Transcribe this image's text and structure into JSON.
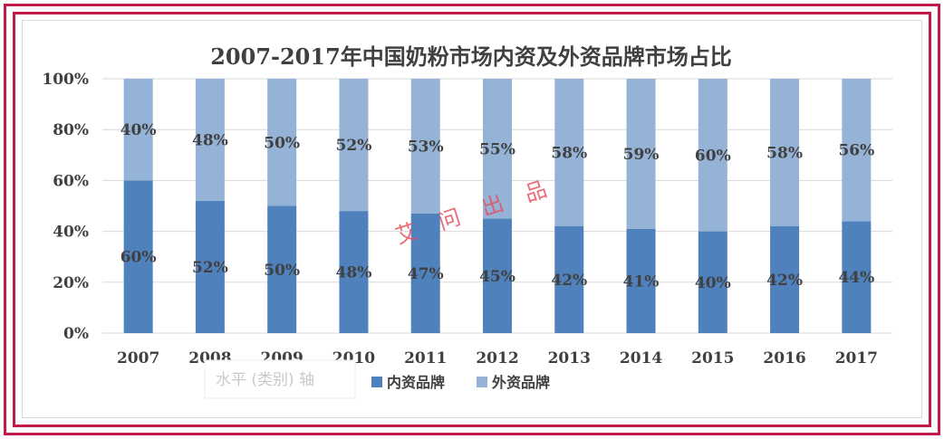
{
  "chart_data": {
    "type": "bar",
    "stacked": true,
    "title": "2007-2017年中国奶粉市场内资及外资品牌市场占比",
    "categories": [
      "2007",
      "2008",
      "2009",
      "2010",
      "2011",
      "2012",
      "2013",
      "2014",
      "2015",
      "2016",
      "2017"
    ],
    "series": [
      {
        "name": "内资品牌",
        "color": "#4f81bd",
        "values": [
          60,
          52,
          50,
          48,
          47,
          45,
          42,
          41,
          40,
          42,
          44
        ],
        "labels": [
          "60%",
          "52%",
          "50%",
          "48%",
          "47%",
          "45%",
          "42%",
          "41%",
          "40%",
          "42%",
          "44%"
        ]
      },
      {
        "name": "外资品牌",
        "color": "#95b3d7",
        "values": [
          40,
          48,
          50,
          52,
          53,
          55,
          58,
          59,
          60,
          58,
          56
        ],
        "labels": [
          "40%",
          "48%",
          "50%",
          "52%",
          "53%",
          "55%",
          "58%",
          "59%",
          "60%",
          "58%",
          "56%"
        ]
      }
    ],
    "yticks": [
      "0%",
      "20%",
      "40%",
      "60%",
      "80%",
      "100%"
    ],
    "ylim": [
      0,
      100
    ],
    "grid": true,
    "legend_position": "bottom"
  },
  "watermark": [
    "艾",
    "问",
    "出",
    "品"
  ],
  "axis_tooltip": "水平 (类别) 轴"
}
